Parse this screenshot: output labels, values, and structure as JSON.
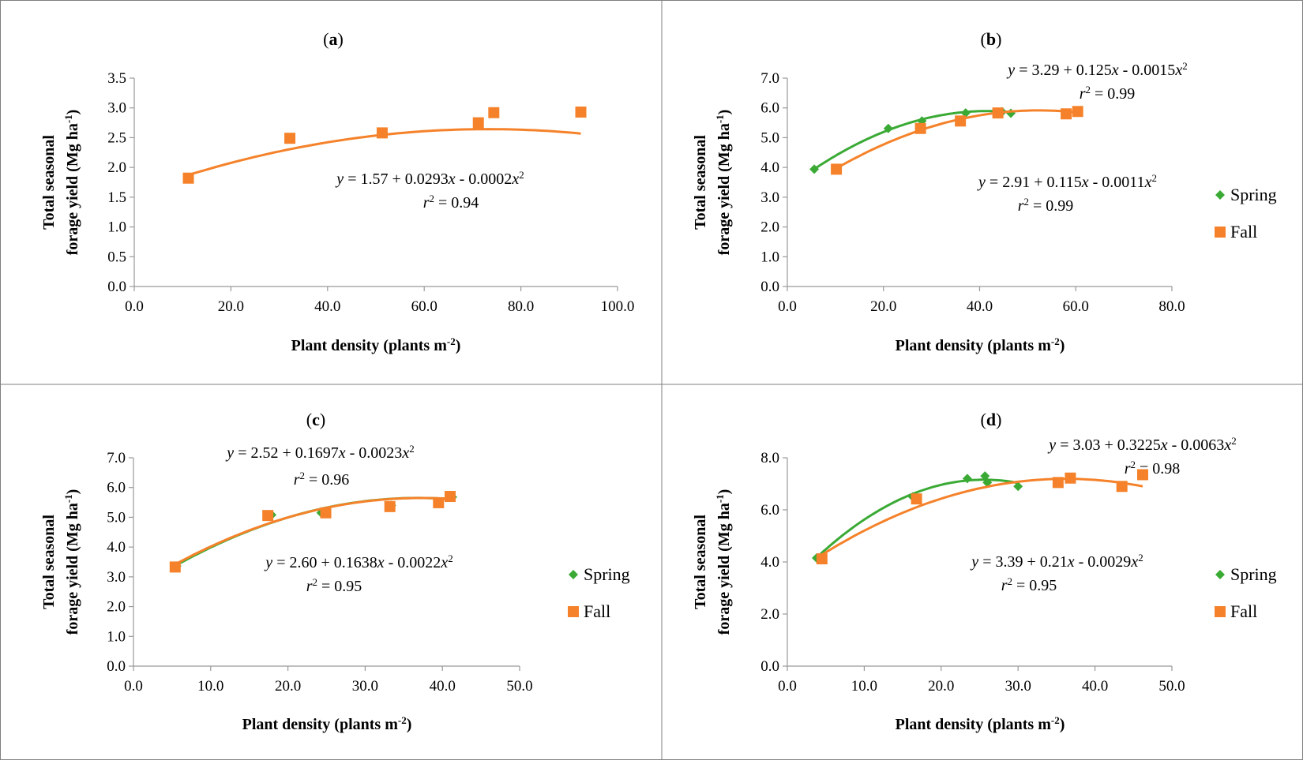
{
  "colors": {
    "spring": "#3AAA35",
    "fall": "#F5822A",
    "axis": "#999999",
    "text": "#000000",
    "border": "#7f7f7f"
  },
  "chart_data": [
    {
      "id": "a",
      "panel_label": "a",
      "type": "scatter",
      "xlabel": "Plant density (plants m",
      "xlabel_sup": "-2",
      "xlabel_end": ")",
      "ylabel_line1": "Total seasonal",
      "ylabel_line2": "forage yield (Mg ha",
      "ylabel_sup": "-1",
      "ylabel_end": ")",
      "xlim": [
        0,
        100
      ],
      "xticks": [
        0,
        20,
        40,
        60,
        80,
        100
      ],
      "xtick_labels": [
        "0.0",
        "20.0",
        "40.0",
        "60.0",
        "80.0",
        "100.0"
      ],
      "ylim": [
        0,
        3.5
      ],
      "yticks": [
        0,
        0.5,
        1,
        1.5,
        2,
        2.5,
        3,
        3.5
      ],
      "ytick_labels": [
        "0.0",
        "0.5",
        "1.0",
        "1.5",
        "2.0",
        "2.5",
        "3.0",
        "3.5"
      ],
      "legend": [],
      "series": [
        {
          "key": "fall",
          "marker": "square",
          "points": [
            [
              11.2,
              1.82
            ],
            [
              32.2,
              2.49
            ],
            [
              51.3,
              2.58
            ],
            [
              71.2,
              2.75
            ],
            [
              74.4,
              2.92
            ],
            [
              92.4,
              2.93
            ]
          ],
          "fit": {
            "a": 1.57,
            "b": 0.0293,
            "c": -0.0002,
            "x_range": [
              11.2,
              92.4
            ]
          },
          "equation": {
            "y": "y",
            "rhs": " = 1.57 + 0.0293",
            "x1": "x",
            "mid": " - 0.0002",
            "x2": "x",
            "sup": "2"
          },
          "r2": {
            "r": "r",
            "sup": "2",
            "rhs": " = 0.94"
          }
        }
      ]
    },
    {
      "id": "b",
      "panel_label": "b",
      "type": "scatter",
      "xlabel": "Plant density (plants m",
      "xlabel_sup": "-2",
      "xlabel_end": ")",
      "ylabel_line1": "Total seasonal",
      "ylabel_line2": "forage yield (Mg ha",
      "ylabel_sup": "-1",
      "ylabel_end": ")",
      "xlim": [
        0,
        80
      ],
      "xticks": [
        0,
        20,
        40,
        60,
        80
      ],
      "xtick_labels": [
        "0.0",
        "20.0",
        "40.0",
        "60.0",
        "80.0"
      ],
      "ylim": [
        0,
        7
      ],
      "yticks": [
        0,
        1,
        2,
        3,
        4,
        5,
        6,
        7
      ],
      "ytick_labels": [
        "0.0",
        "1.0",
        "2.0",
        "3.0",
        "4.0",
        "5.0",
        "6.0",
        "7.0"
      ],
      "legend": [
        {
          "key": "spring",
          "label": "Spring",
          "marker": "diamond"
        },
        {
          "key": "fall",
          "label": "Fall",
          "marker": "square"
        }
      ],
      "series": [
        {
          "key": "spring",
          "marker": "diamond",
          "points": [
            [
              5.6,
              3.94
            ],
            [
              21.0,
              5.31
            ],
            [
              28.0,
              5.56
            ],
            [
              37.1,
              5.83
            ],
            [
              44.7,
              5.87
            ],
            [
              46.5,
              5.82
            ]
          ],
          "fit": {
            "a": 3.29,
            "b": 0.125,
            "c": -0.0015,
            "x_range": [
              5.6,
              46.5
            ]
          },
          "equation": {
            "y": "y",
            "rhs": " = 3.29 + 0.125",
            "x1": "x",
            "mid": " - 0.0015",
            "x2": "x",
            "sup": "2"
          },
          "r2": {
            "r": "r",
            "sup": "2",
            "rhs": " = 0.99"
          }
        },
        {
          "key": "fall",
          "marker": "square",
          "points": [
            [
              10.2,
              3.94
            ],
            [
              27.7,
              5.31
            ],
            [
              36.0,
              5.56
            ],
            [
              43.8,
              5.83
            ],
            [
              58.0,
              5.8
            ],
            [
              60.4,
              5.88
            ]
          ],
          "fit": {
            "a": 2.91,
            "b": 0.115,
            "c": -0.0011,
            "x_range": [
              10.2,
              60.4
            ]
          },
          "equation": {
            "y": "y",
            "rhs": " = 2.91 + 0.115",
            "x1": "x",
            "mid": " - 0.0011",
            "x2": "x",
            "sup": "2"
          },
          "r2": {
            "r": "r",
            "sup": "2",
            "rhs": " = 0.99"
          }
        }
      ]
    },
    {
      "id": "c",
      "panel_label": "c",
      "type": "scatter",
      "xlabel": "Plant density (plants m",
      "xlabel_sup": "-2",
      "xlabel_end": ")",
      "ylabel_line1": "Total seasonal",
      "ylabel_line2": "forage yield (Mg ha",
      "ylabel_sup": "-1",
      "ylabel_end": ")",
      "xlim": [
        0,
        50
      ],
      "xticks": [
        0,
        10,
        20,
        30,
        40,
        50
      ],
      "xtick_labels": [
        "0.0",
        "10.0",
        "20.0",
        "30.0",
        "40.0",
        "50.0"
      ],
      "ylim": [
        0,
        7
      ],
      "yticks": [
        0,
        1,
        2,
        3,
        4,
        5,
        6,
        7
      ],
      "ytick_labels": [
        "0.0",
        "1.0",
        "2.0",
        "3.0",
        "4.0",
        "5.0",
        "6.0",
        "7.0"
      ],
      "legend": [
        {
          "key": "spring",
          "label": "Spring",
          "marker": "diamond"
        },
        {
          "key": "fall",
          "label": "Fall",
          "marker": "square"
        }
      ],
      "series": [
        {
          "key": "spring",
          "marker": "diamond",
          "points": [
            [
              5.6,
              3.36
            ],
            [
              17.9,
              5.08
            ],
            [
              24.3,
              5.15
            ],
            [
              33.4,
              5.4
            ],
            [
              39.6,
              5.49
            ],
            [
              41.3,
              5.68
            ]
          ],
          "fit": {
            "a": 2.52,
            "b": 0.1697,
            "c": -0.0023,
            "x_range": [
              5.6,
              41.3
            ]
          },
          "equation": {
            "y": "y",
            "rhs": " = 2.52 + 0.1697",
            "x1": "x",
            "mid": " - 0.0023",
            "x2": "x",
            "sup": "2"
          },
          "r2": {
            "r": "r",
            "sup": "2",
            "rhs": " = 0.96"
          }
        },
        {
          "key": "fall",
          "marker": "square",
          "points": [
            [
              5.4,
              3.33
            ],
            [
              17.4,
              5.06
            ],
            [
              24.9,
              5.15
            ],
            [
              33.2,
              5.36
            ],
            [
              39.5,
              5.49
            ],
            [
              41.0,
              5.7
            ]
          ],
          "fit": {
            "a": 2.6,
            "b": 0.1638,
            "c": -0.0022,
            "x_range": [
              5.4,
              41.0
            ]
          },
          "equation": {
            "y": "y",
            "rhs": " = 2.60 + 0.1638",
            "x1": "x",
            "mid": " - 0.0022",
            "x2": "x",
            "sup": "2"
          },
          "r2": {
            "r": "r",
            "sup": "2",
            "rhs": " = 0.95"
          }
        }
      ]
    },
    {
      "id": "d",
      "panel_label": "d",
      "type": "scatter",
      "xlabel": "Plant density (plants m",
      "xlabel_sup": "-2",
      "xlabel_end": ")",
      "ylabel_line1": "Total seasonal",
      "ylabel_line2": "forage yield (Mg ha",
      "ylabel_sup": "-1",
      "ylabel_end": ")",
      "xlim": [
        0,
        50
      ],
      "xticks": [
        0,
        10,
        20,
        30,
        40,
        50
      ],
      "xtick_labels": [
        "0.0",
        "10.0",
        "20.0",
        "30.0",
        "40.0",
        "50.0"
      ],
      "ylim": [
        0,
        8
      ],
      "yticks": [
        0,
        2,
        4,
        6,
        8
      ],
      "ytick_labels": [
        "0.0",
        "2.0",
        "4.0",
        "6.0",
        "8.0"
      ],
      "legend": [
        {
          "key": "spring",
          "label": "Spring",
          "marker": "diamond"
        },
        {
          "key": "fall",
          "label": "Fall",
          "marker": "square"
        }
      ],
      "series": [
        {
          "key": "spring",
          "marker": "diamond",
          "points": [
            [
              3.8,
              4.15
            ],
            [
              16.3,
              6.5
            ],
            [
              23.4,
              7.2
            ],
            [
              25.7,
              7.3
            ],
            [
              26.0,
              7.05
            ],
            [
              30.0,
              6.9
            ]
          ],
          "fit": {
            "a": 3.03,
            "b": 0.3225,
            "c": -0.0063,
            "x_range": [
              3.8,
              30.0
            ]
          },
          "equation": {
            "y": "y",
            "rhs": " = 3.03 + 0.3225",
            "x1": "x",
            "mid": " - 0.0063",
            "x2": "x",
            "sup": "2"
          },
          "r2": {
            "r": "r",
            "sup": "2",
            "rhs": " = 0.98"
          }
        },
        {
          "key": "fall",
          "marker": "square",
          "points": [
            [
              4.5,
              4.12
            ],
            [
              16.8,
              6.42
            ],
            [
              35.2,
              7.05
            ],
            [
              36.8,
              7.22
            ],
            [
              43.5,
              6.9
            ],
            [
              46.2,
              7.35
            ]
          ],
          "fit": {
            "a": 3.39,
            "b": 0.21,
            "c": -0.0029,
            "x_range": [
              4.5,
              46.2
            ]
          },
          "equation": {
            "y": "y",
            "rhs": " = 3.39 + 0.21",
            "x1": "x",
            "mid": " - 0.0029",
            "x2": "x",
            "sup": "2"
          },
          "r2": {
            "r": "r",
            "sup": "2",
            "rhs": " = 0.95"
          }
        }
      ]
    }
  ]
}
